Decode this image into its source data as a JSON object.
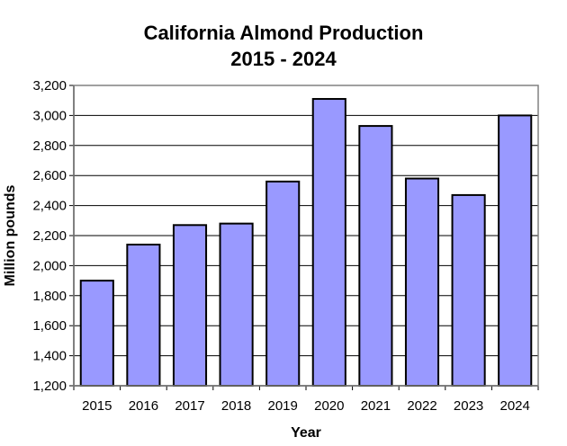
{
  "chart_data": {
    "type": "bar",
    "title": "California Almond Production",
    "subtitle": "2015 - 2024",
    "xlabel": "Year",
    "ylabel": "Million pounds",
    "categories": [
      "2015",
      "2016",
      "2017",
      "2018",
      "2019",
      "2020",
      "2021",
      "2022",
      "2023",
      "2024"
    ],
    "values": [
      1900,
      2140,
      2270,
      2280,
      2560,
      3110,
      2930,
      2580,
      2470,
      3000
    ],
    "ylim": [
      1200,
      3200
    ],
    "yticks": [
      1200,
      1400,
      1600,
      1800,
      2000,
      2200,
      2400,
      2600,
      2800,
      3000,
      3200
    ],
    "ytick_labels": [
      "1,200",
      "1,400",
      "1,600",
      "1,800",
      "2,000",
      "2,200",
      "2,400",
      "2,600",
      "2,800",
      "3,000",
      "3,200"
    ],
    "grid": true,
    "legend": "none",
    "colors": {
      "bar_fill": "#9999ff",
      "bar_stroke": "#000000",
      "grid": "#000000",
      "frame": "#808080"
    }
  }
}
